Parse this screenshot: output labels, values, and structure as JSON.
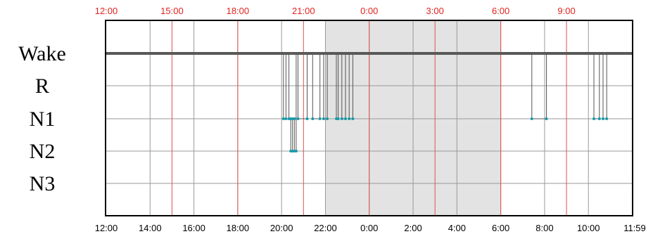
{
  "chart_data": {
    "type": "line",
    "title": "",
    "xlabel": "",
    "ylabel": "",
    "y_categories": [
      "Wake",
      "R",
      "N1",
      "N2",
      "N3"
    ],
    "x_range": [
      "12:00",
      "11:59"
    ],
    "bottom_ticks": [
      "12:00",
      "14:00",
      "16:00",
      "18:00",
      "20:00",
      "22:00",
      "0:00",
      "2:00",
      "4:00",
      "6:00",
      "8:00",
      "10:00",
      "11:59"
    ],
    "top_ticks": [
      "12:00",
      "15:00",
      "18:00",
      "21:00",
      "0:00",
      "3:00",
      "6:00",
      "9:00"
    ],
    "shaded_period": [
      "22:00",
      "6:00"
    ],
    "grid": true,
    "colors": {
      "hypnogram_line": "#555555",
      "stage_points": "#1a9aa8",
      "top_axis_text": "#e0231f",
      "red_gridlines": "#e05050",
      "shade": "#e3e3e3",
      "bottom_axis_text": "#000000"
    },
    "series": [
      {
        "x": [
          "12:00",
          "20:05",
          "20:05",
          "20:12",
          "20:12",
          "20:20",
          "20:20",
          "20:25",
          "20:25",
          "20:30",
          "20:30",
          "20:35",
          "20:35",
          "20:40",
          "20:40",
          "20:45",
          "20:45",
          "21:10",
          "21:10",
          "21:25",
          "21:25",
          "21:45",
          "21:45",
          "21:55",
          "21:55",
          "22:05",
          "22:05",
          "22:30",
          "22:30",
          "22:35",
          "22:35",
          "22:45",
          "22:45",
          "22:55",
          "22:55",
          "23:05",
          "23:05",
          "23:15",
          "23:15",
          "07:25",
          "07:25",
          "08:05",
          "08:05",
          "10:15",
          "10:15",
          "10:30",
          "10:30",
          "10:40",
          "10:40",
          "10:50",
          "10:50",
          "11:59"
        ],
        "y": [
          "Wake",
          "Wake",
          "N1",
          "N1",
          "Wake",
          "Wake",
          "N1",
          "N1",
          "N2",
          "N2",
          "N1",
          "N1",
          "N2",
          "N2",
          "Wake",
          "Wake",
          "N1",
          "N1",
          "Wake",
          "Wake",
          "N1",
          "N1",
          "Wake",
          "Wake",
          "N1",
          "N1",
          "Wake",
          "Wake",
          "N1",
          "N1",
          "Wake",
          "Wake",
          "N1",
          "N1",
          "Wake",
          "Wake",
          "N1",
          "N1",
          "Wake",
          "Wake",
          "N1",
          "N1",
          "Wake",
          "Wake",
          "N1",
          "N1",
          "Wake",
          "Wake",
          "N1",
          "N1",
          "Wake",
          "Wake"
        ]
      }
    ]
  }
}
